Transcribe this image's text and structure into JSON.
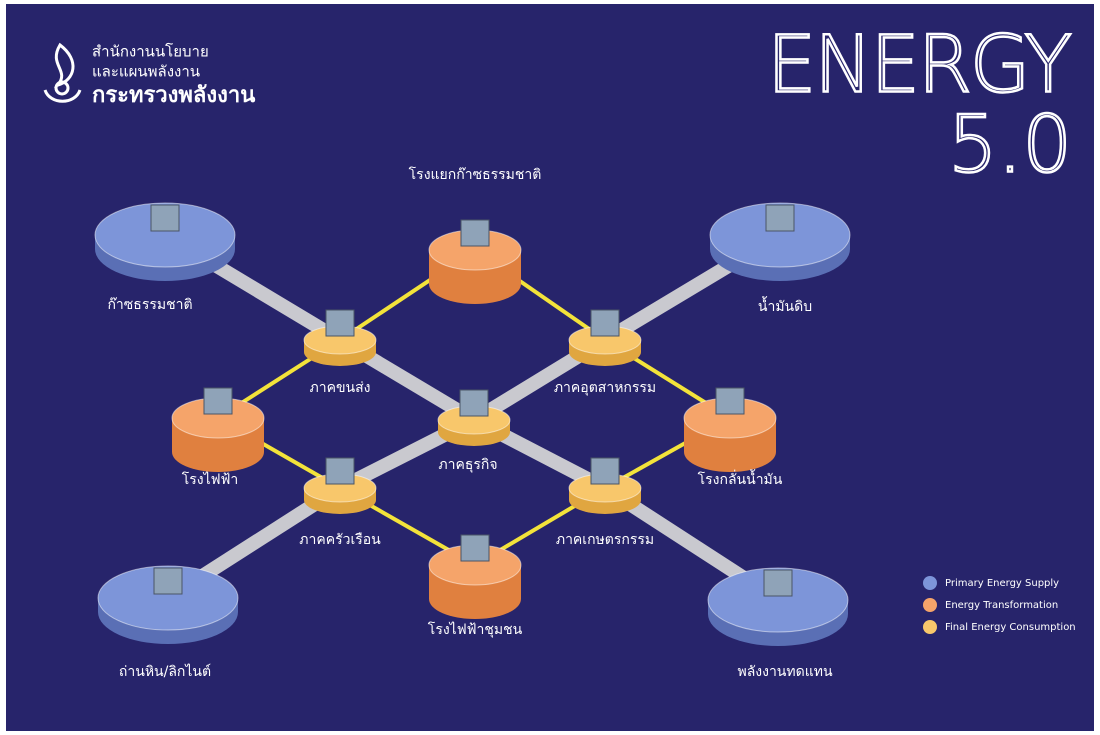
{
  "header": {
    "org_lines": [
      "สำนักงานนโยบาย",
      "และแผนพลังงาน",
      "กระทรวงพลังงาน"
    ],
    "title": "ENERGY",
    "subtitle": "5.0"
  },
  "nodes": [
    {
      "label": "ก๊าซธรรมชาติ",
      "kind": "primary"
    },
    {
      "label": "โรงแยกก๊าซธรรมชาติ",
      "kind": "transformation"
    },
    {
      "label": "น้ำมันดิบ",
      "kind": "primary"
    },
    {
      "label": "ภาคขนส่ง",
      "kind": "final"
    },
    {
      "label": "ภาคอุตสาหกรรม",
      "kind": "final"
    },
    {
      "label": "โรงไฟฟ้า",
      "kind": "transformation"
    },
    {
      "label": "ภาคธุรกิจ",
      "kind": "final"
    },
    {
      "label": "โรงกลั่นน้ำมัน",
      "kind": "transformation"
    },
    {
      "label": "ภาคครัวเรือน",
      "kind": "final"
    },
    {
      "label": "ภาคเกษตรกรรม",
      "kind": "final"
    },
    {
      "label": "โรงไฟฟ้าชุมชน",
      "kind": "transformation"
    },
    {
      "label": "ถ่านหิน/ลิกไนต์",
      "kind": "primary"
    },
    {
      "label": "พลังงานทดแทน",
      "kind": "primary"
    }
  ],
  "legend": [
    {
      "label": "Primary Energy Supply",
      "kind": "primary",
      "color": "#7d95d9"
    },
    {
      "label": "Energy Transformation",
      "kind": "transformation",
      "color": "#f5a46a"
    },
    {
      "label": "Final Energy Consumption",
      "kind": "final",
      "color": "#f8c76b"
    }
  ]
}
